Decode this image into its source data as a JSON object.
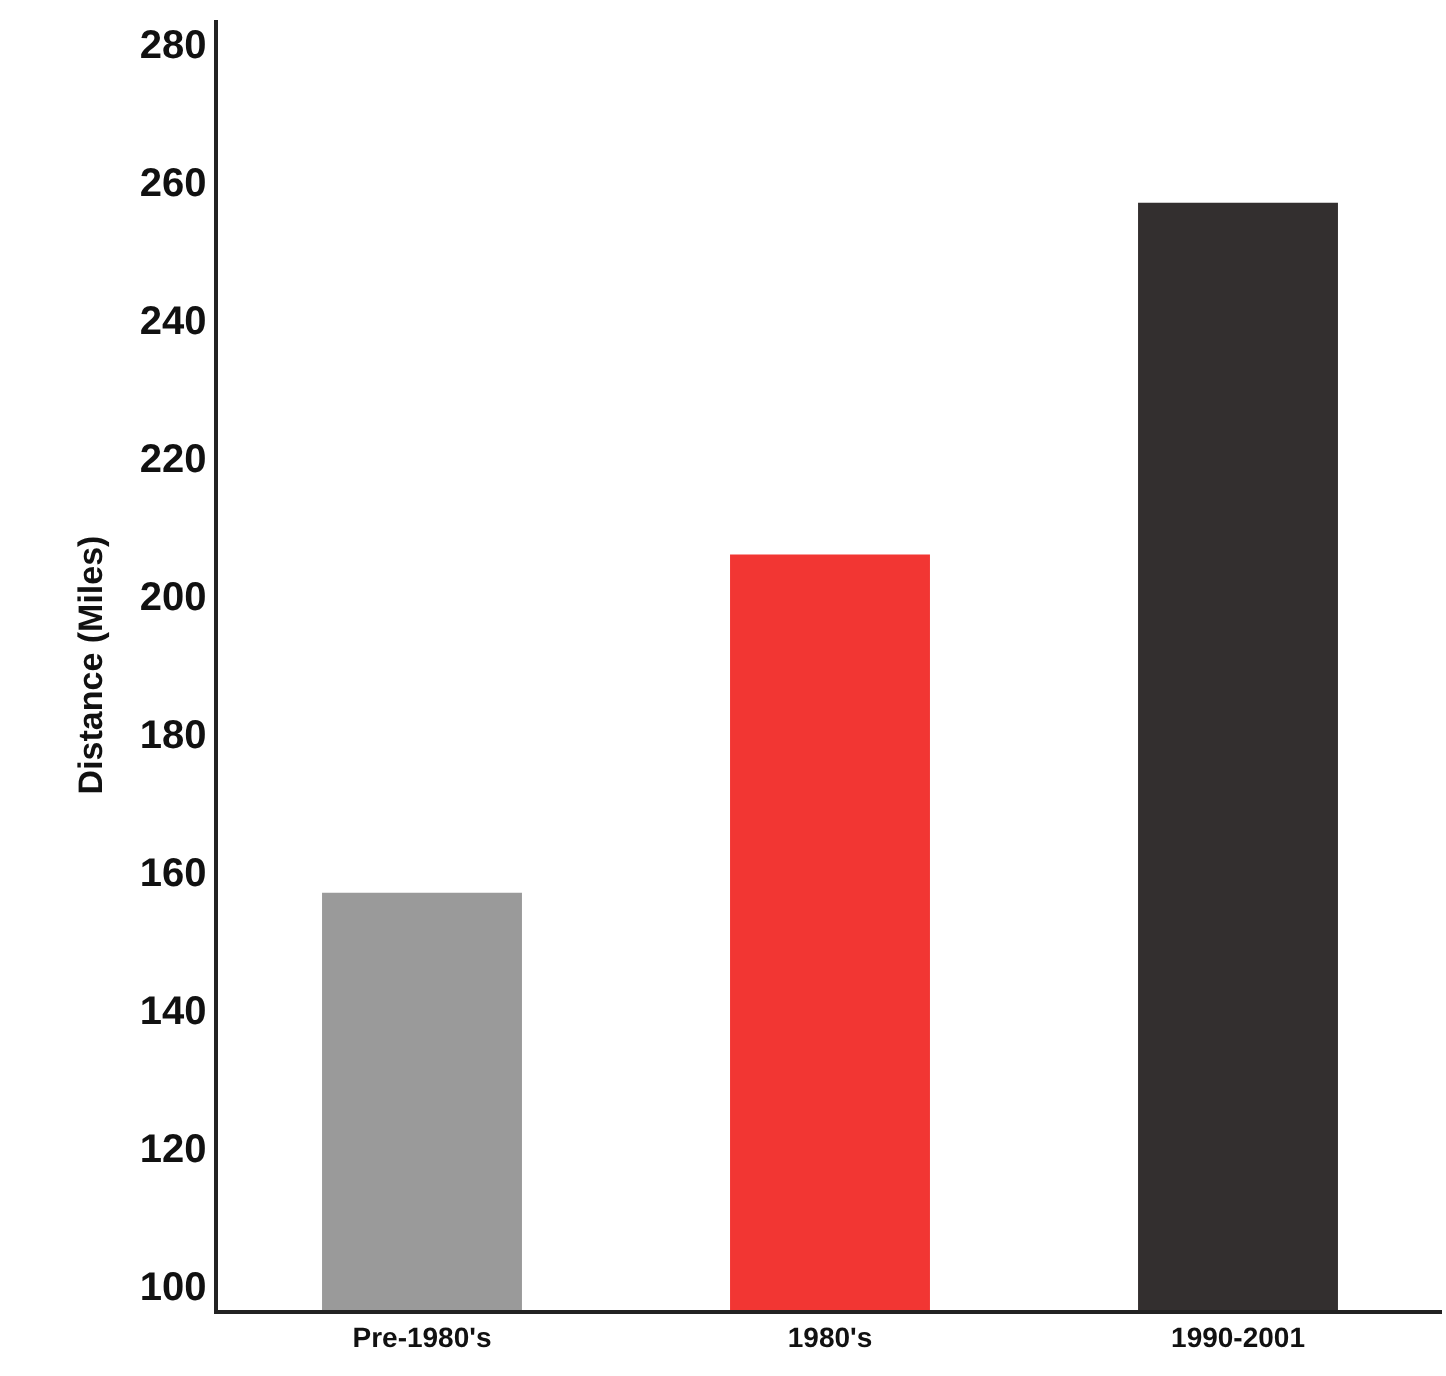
{
  "chart_data": {
    "type": "bar",
    "ylabel": "Distance (Miles)",
    "categories": [
      "Pre-1980's",
      "1980's",
      "1990-2001"
    ],
    "values": [
      157,
      206,
      257
    ],
    "colors": [
      "#9a9a9a",
      "#f23633",
      "#332f2f"
    ],
    "ylim": [
      96.5,
      283.5
    ],
    "yticks": [
      100,
      120,
      140,
      160,
      180,
      200,
      220,
      240,
      260,
      280
    ]
  }
}
